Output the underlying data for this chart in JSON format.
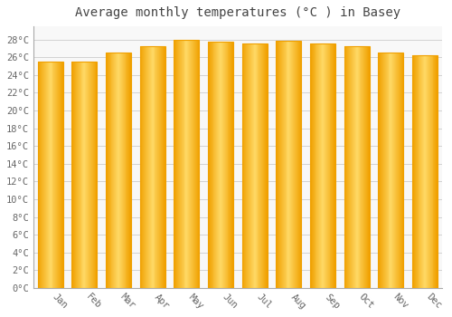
{
  "months": [
    "Jan",
    "Feb",
    "Mar",
    "Apr",
    "May",
    "Jun",
    "Jul",
    "Aug",
    "Sep",
    "Oct",
    "Nov",
    "Dec"
  ],
  "values": [
    25.5,
    25.5,
    26.5,
    27.3,
    28.0,
    27.8,
    27.6,
    27.9,
    27.6,
    27.3,
    26.5,
    26.2
  ],
  "bar_color_edge": "#F0A000",
  "bar_color_center": "#FFD966",
  "background_color": "#FFFFFF",
  "plot_bg_color": "#F8F8F8",
  "grid_color": "#CCCCCC",
  "title": "Average monthly temperatures (°C ) in Basey",
  "title_fontsize": 10,
  "yticks": [
    0,
    2,
    4,
    6,
    8,
    10,
    12,
    14,
    16,
    18,
    20,
    22,
    24,
    26,
    28
  ],
  "ylim": [
    0,
    29.5
  ],
  "tick_fontsize": 7.5,
  "font_family": "monospace"
}
